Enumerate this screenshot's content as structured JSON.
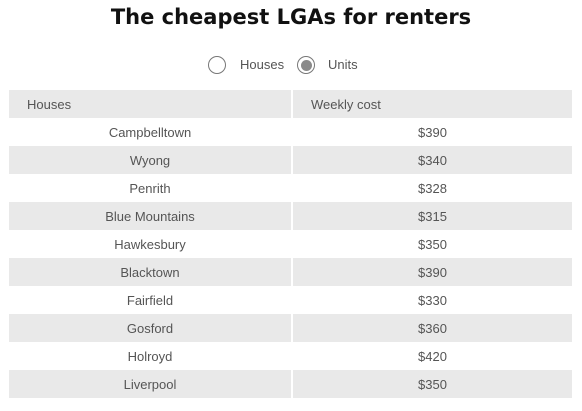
{
  "title": "The cheapest LGAs for renters",
  "toggle": {
    "options": [
      {
        "label": "Houses",
        "selected": false
      },
      {
        "label": "Units",
        "selected": true
      }
    ]
  },
  "table": {
    "headers": [
      "Houses",
      "Weekly cost"
    ],
    "rows": [
      {
        "name": "Campbelltown",
        "cost": "$390"
      },
      {
        "name": "Wyong",
        "cost": "$340"
      },
      {
        "name": "Penrith",
        "cost": "$328"
      },
      {
        "name": "Blue Mountains",
        "cost": "$315"
      },
      {
        "name": "Hawkesbury",
        "cost": "$350"
      },
      {
        "name": "Blacktown",
        "cost": "$390"
      },
      {
        "name": "Fairfield",
        "cost": "$330"
      },
      {
        "name": "Gosford",
        "cost": "$360"
      },
      {
        "name": "Holroyd",
        "cost": "$420"
      },
      {
        "name": "Liverpool",
        "cost": "$350"
      }
    ]
  },
  "colors": {
    "stripe": "#e9e9e9",
    "text": "#555555",
    "title": "#111111",
    "radio_selected": "#8a8a8a"
  }
}
